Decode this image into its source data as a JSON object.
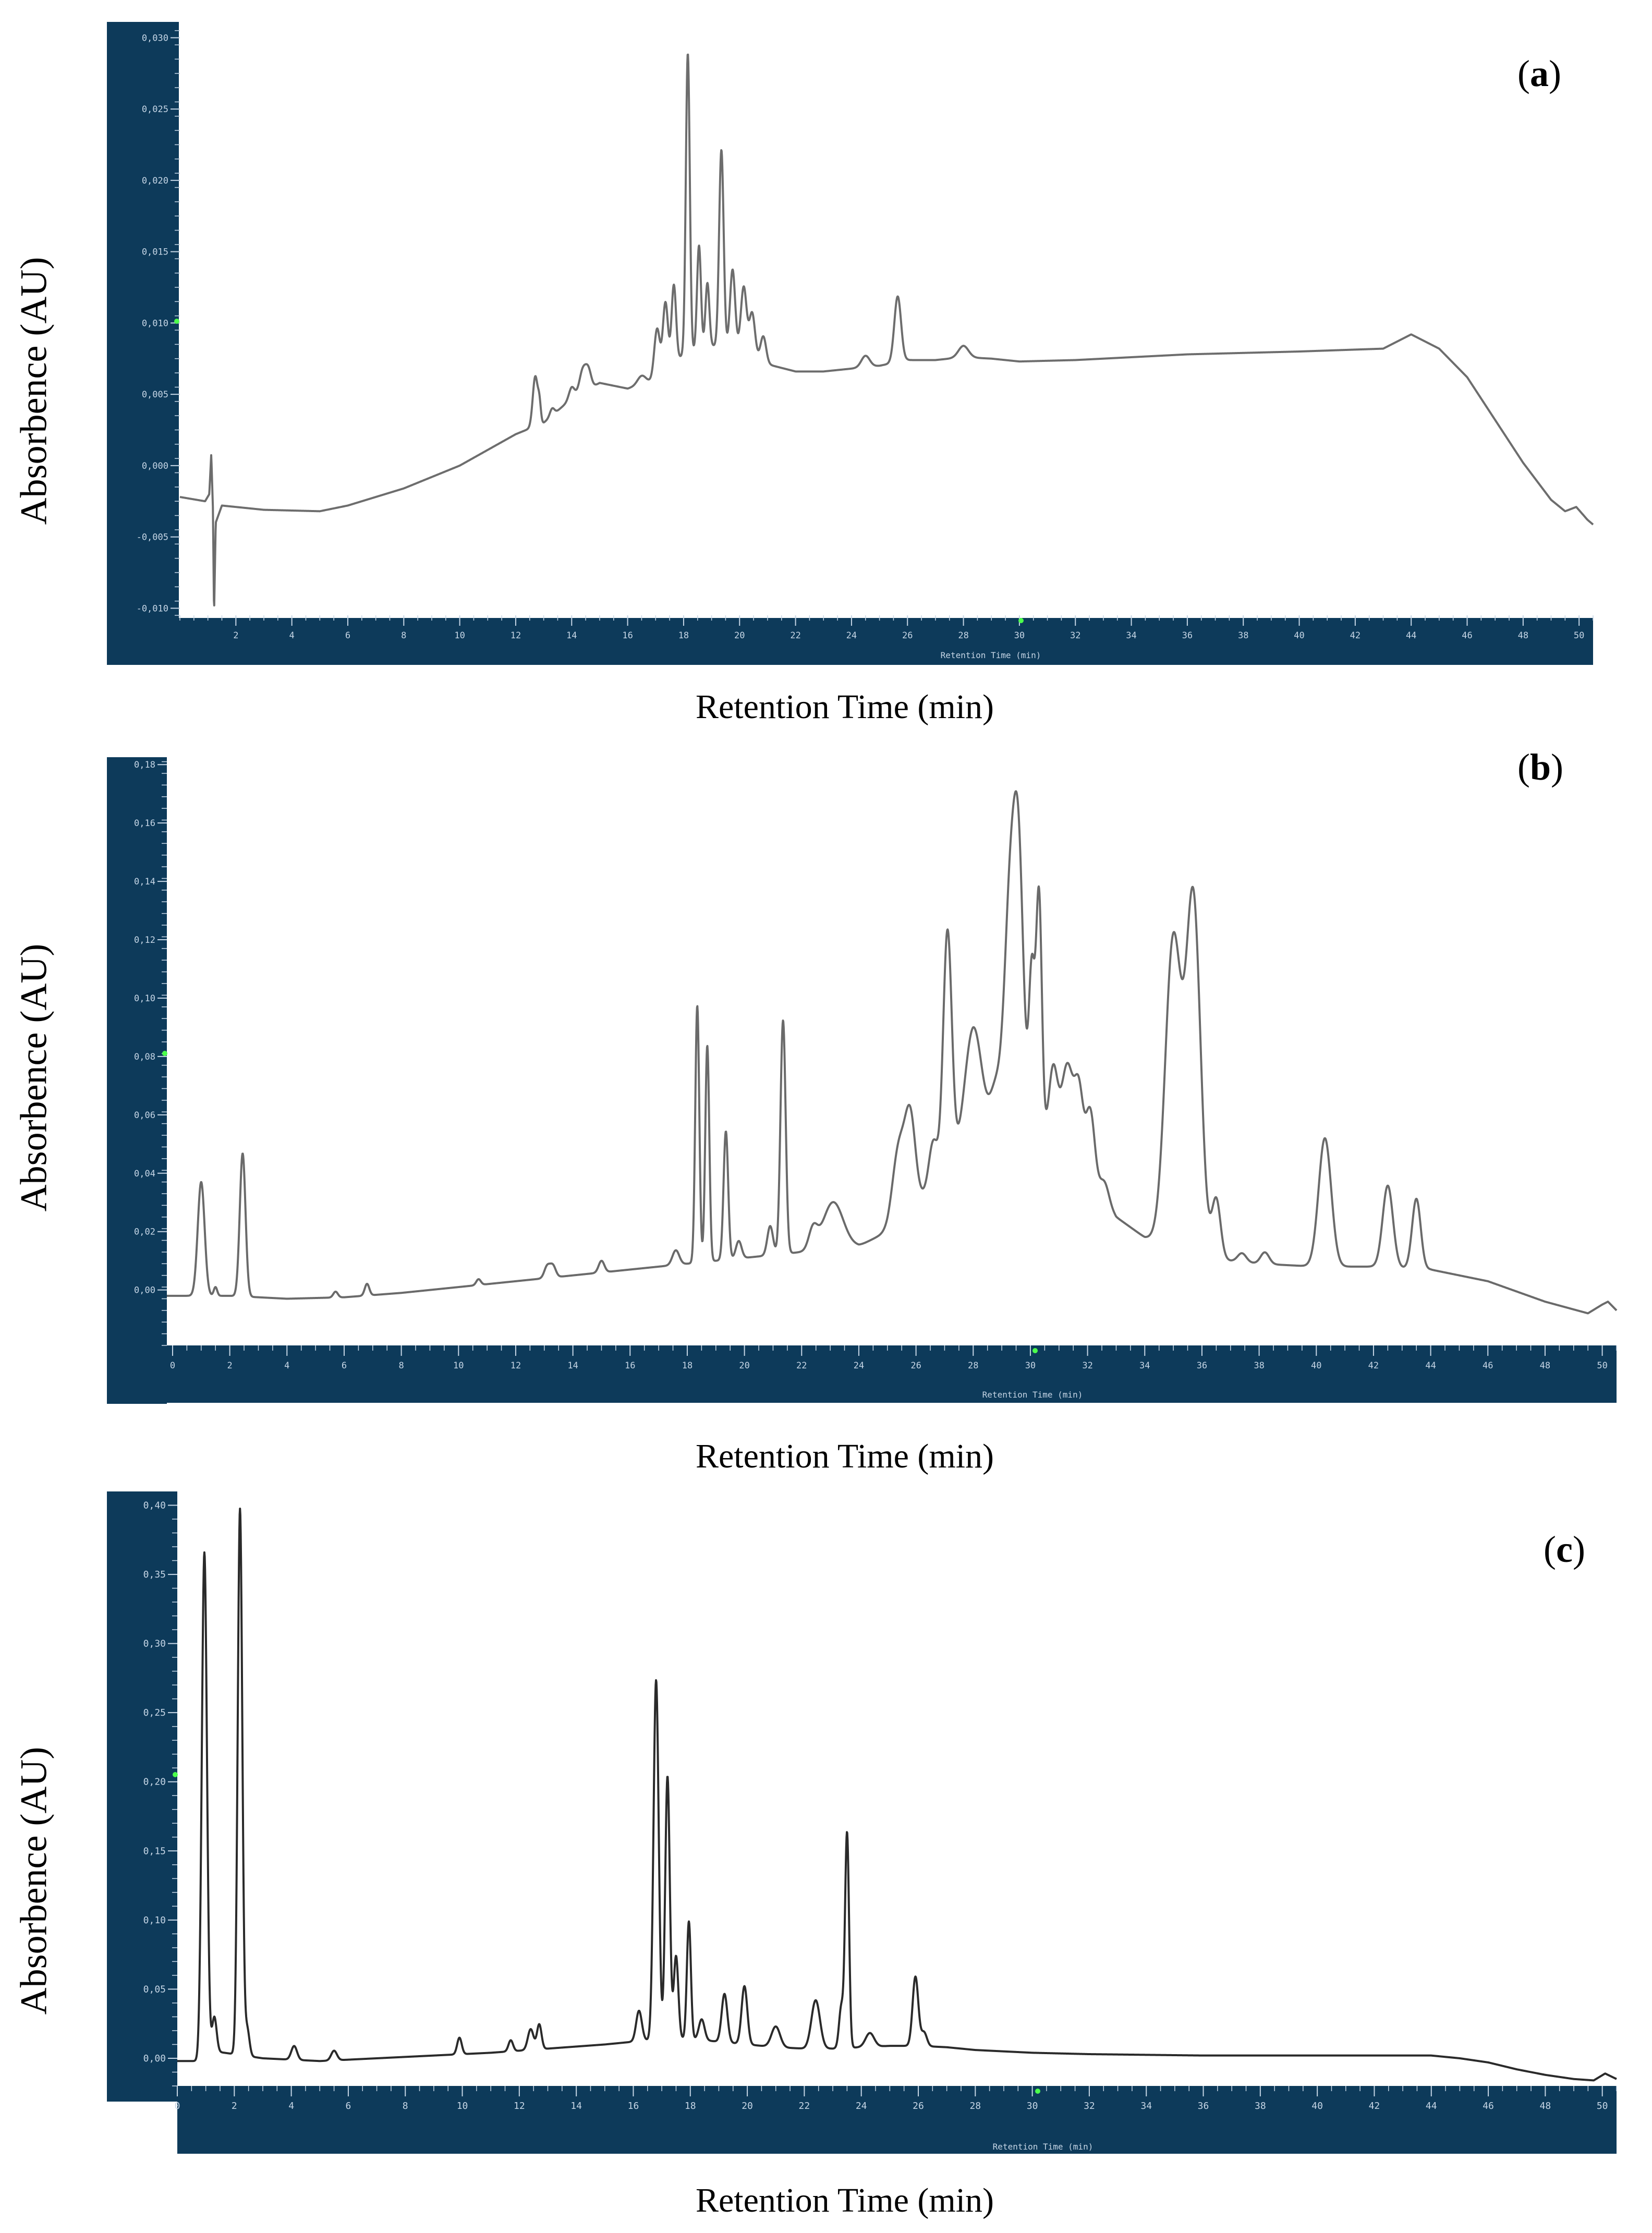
{
  "figure_panels": [
    {
      "id": "a",
      "label": "a"
    },
    {
      "id": "b",
      "label": "b"
    },
    {
      "id": "c",
      "label": "c"
    }
  ],
  "colors": {
    "axis_band": "#0d3a5a",
    "tick_text": "#c6d6e6",
    "trace_a": "#6d6d6d",
    "trace_b": "#6a6a6a",
    "trace_c": "#2a2a2a",
    "marker": "#4cff4c",
    "background": "#ffffff"
  },
  "chart_data": [
    {
      "type": "line",
      "panel": "a",
      "ylabel": "Absorbence (AU)",
      "xlabel": "Retention Time (min)",
      "inner_xlabel": "Retention Time (min)",
      "xlim": [
        0,
        50.5
      ],
      "ylim": [
        -0.0105,
        0.031
      ],
      "xticks": [
        2,
        4,
        6,
        8,
        10,
        12,
        14,
        16,
        18,
        20,
        22,
        24,
        26,
        28,
        30,
        32,
        34,
        36,
        38,
        40,
        42,
        44,
        46,
        48,
        50
      ],
      "yticks": [
        -0.01,
        -0.005,
        0.0,
        0.005,
        0.01,
        0.015,
        0.02,
        0.025,
        0.03
      ],
      "yticklabels": [
        "-0,010",
        "-0,005",
        "0,000",
        "0,005",
        "0,010",
        "0,015",
        "0,020",
        "0,025",
        "0,030"
      ],
      "baseline": [
        [
          0,
          -0.0022
        ],
        [
          0.9,
          -0.0025
        ],
        [
          1.05,
          -0.002
        ],
        [
          1.12,
          0.0008
        ],
        [
          1.18,
          -0.003
        ],
        [
          1.22,
          -0.0105
        ],
        [
          1.28,
          -0.004
        ],
        [
          1.5,
          -0.0028
        ],
        [
          3,
          -0.0031
        ],
        [
          5,
          -0.0032
        ],
        [
          6,
          -0.0028
        ],
        [
          8,
          -0.0016
        ],
        [
          10,
          0.0
        ],
        [
          12,
          0.0022
        ],
        [
          13,
          0.003
        ],
        [
          14,
          0.0047
        ],
        [
          15,
          0.0058
        ],
        [
          16,
          0.0054
        ],
        [
          17,
          0.006
        ],
        [
          18,
          0.0078
        ],
        [
          19,
          0.0084
        ],
        [
          20,
          0.0082
        ],
        [
          21,
          0.0071
        ],
        [
          22,
          0.0066
        ],
        [
          23,
          0.0066
        ],
        [
          24,
          0.0068
        ],
        [
          25,
          0.007
        ],
        [
          26,
          0.0074
        ],
        [
          27,
          0.0074
        ],
        [
          28,
          0.0076
        ],
        [
          29,
          0.0075
        ],
        [
          30,
          0.0073
        ],
        [
          32,
          0.0074
        ],
        [
          36,
          0.0078
        ],
        [
          40,
          0.008
        ],
        [
          43,
          0.0082
        ],
        [
          44,
          0.0092
        ],
        [
          45,
          0.0082
        ],
        [
          46,
          0.0062
        ],
        [
          47,
          0.0032
        ],
        [
          48,
          0.0002
        ],
        [
          49,
          -0.0024
        ],
        [
          49.5,
          -0.0032
        ],
        [
          49.9,
          -0.0029
        ],
        [
          50.3,
          -0.0038
        ],
        [
          50.6,
          -0.0043
        ]
      ],
      "peaks": [
        [
          12.7,
          0.0035,
          0.09
        ],
        [
          12.85,
          0.0012,
          0.05
        ],
        [
          13.3,
          0.0005,
          0.08
        ],
        [
          14.0,
          0.0008,
          0.1
        ],
        [
          14.4,
          0.0016,
          0.12
        ],
        [
          14.6,
          0.0012,
          0.1
        ],
        [
          16.5,
          0.0006,
          0.15
        ],
        [
          17.05,
          0.0035,
          0.1
        ],
        [
          17.35,
          0.0048,
          0.09
        ],
        [
          17.65,
          0.0055,
          0.08
        ],
        [
          18.15,
          0.021,
          0.07
        ],
        [
          18.55,
          0.0073,
          0.07
        ],
        [
          18.85,
          0.0045,
          0.07
        ],
        [
          19.35,
          0.0138,
          0.08
        ],
        [
          19.75,
          0.0055,
          0.09
        ],
        [
          20.15,
          0.0045,
          0.1
        ],
        [
          20.45,
          0.003,
          0.1
        ],
        [
          20.85,
          0.0018,
          0.1
        ],
        [
          24.5,
          0.0008,
          0.15
        ],
        [
          25.65,
          0.0046,
          0.12
        ],
        [
          28.0,
          0.0008,
          0.18
        ]
      ]
    },
    {
      "type": "line",
      "panel": "b",
      "ylabel": "Absorbence (AU)",
      "xlabel": "Retention Time (min)",
      "inner_xlabel": "Retention Time (min)",
      "xlim": [
        -0.2,
        50.5
      ],
      "ylim": [
        -0.019,
        0.182
      ],
      "xticks": [
        0,
        2,
        4,
        6,
        8,
        10,
        12,
        14,
        16,
        18,
        20,
        22,
        24,
        26,
        28,
        30,
        32,
        34,
        36,
        38,
        40,
        42,
        44,
        46,
        48,
        50
      ],
      "yticks": [
        0.0,
        0.02,
        0.04,
        0.06,
        0.08,
        0.1,
        0.12,
        0.14,
        0.16,
        0.18
      ],
      "yticklabels": [
        "0,00",
        "0,02",
        "0,04",
        "0,06",
        "0,08",
        "0,10",
        "0,12",
        "0,14",
        "0,16",
        "0,18"
      ],
      "baseline": [
        [
          -0.2,
          -0.002
        ],
        [
          2,
          -0.002
        ],
        [
          4,
          -0.003
        ],
        [
          6,
          -0.0025
        ],
        [
          8,
          -0.001
        ],
        [
          10,
          0.001
        ],
        [
          12,
          0.003
        ],
        [
          14,
          0.005
        ],
        [
          16,
          0.007
        ],
        [
          17,
          0.008
        ],
        [
          18,
          0.009
        ],
        [
          19,
          0.01
        ],
        [
          20,
          0.011
        ],
        [
          21,
          0.012
        ],
        [
          22,
          0.013
        ],
        [
          23,
          0.014
        ],
        [
          24,
          0.015
        ],
        [
          25,
          0.02
        ],
        [
          26,
          0.03
        ],
        [
          27,
          0.04
        ],
        [
          28,
          0.05
        ],
        [
          29,
          0.055
        ],
        [
          30,
          0.055
        ],
        [
          31,
          0.05
        ],
        [
          32,
          0.04
        ],
        [
          33,
          0.025
        ],
        [
          34,
          0.018
        ],
        [
          35,
          0.015
        ],
        [
          36,
          0.012
        ],
        [
          37,
          0.01
        ],
        [
          38,
          0.009
        ],
        [
          40,
          0.008
        ],
        [
          42,
          0.008
        ],
        [
          44,
          0.007
        ],
        [
          46,
          0.003
        ],
        [
          48,
          -0.004
        ],
        [
          49.5,
          -0.008
        ],
        [
          50,
          -0.005
        ],
        [
          50.2,
          -0.004
        ],
        [
          50.5,
          -0.007
        ]
      ],
      "peaks": [
        [
          1.0,
          0.039,
          0.12
        ],
        [
          1.5,
          0.003,
          0.06
        ],
        [
          2.45,
          0.049,
          0.1
        ],
        [
          5.7,
          0.002,
          0.08
        ],
        [
          6.8,
          0.004,
          0.08
        ],
        [
          10.7,
          0.002,
          0.08
        ],
        [
          13.1,
          0.004,
          0.1
        ],
        [
          13.3,
          0.004,
          0.1
        ],
        [
          15.0,
          0.004,
          0.1
        ],
        [
          17.6,
          0.005,
          0.12
        ],
        [
          18.35,
          0.088,
          0.07
        ],
        [
          18.7,
          0.074,
          0.07
        ],
        [
          19.35,
          0.044,
          0.08
        ],
        [
          19.8,
          0.006,
          0.1
        ],
        [
          20.9,
          0.01,
          0.1
        ],
        [
          21.35,
          0.08,
          0.09
        ],
        [
          22.4,
          0.007,
          0.15
        ],
        [
          23.1,
          0.016,
          0.35
        ],
        [
          25.4,
          0.025,
          0.22
        ],
        [
          25.8,
          0.03,
          0.18
        ],
        [
          26.6,
          0.015,
          0.15
        ],
        [
          27.1,
          0.082,
          0.15
        ],
        [
          28.0,
          0.04,
          0.3
        ],
        [
          28.8,
          0.015,
          0.2
        ],
        [
          29.3,
          0.08,
          0.2
        ],
        [
          29.6,
          0.08,
          0.17
        ],
        [
          30.05,
          0.054,
          0.1
        ],
        [
          30.3,
          0.082,
          0.1
        ],
        [
          30.8,
          0.025,
          0.15
        ],
        [
          31.3,
          0.03,
          0.2
        ],
        [
          31.7,
          0.025,
          0.15
        ],
        [
          32.1,
          0.023,
          0.15
        ],
        [
          32.6,
          0.006,
          0.15
        ],
        [
          35.0,
          0.105,
          0.28
        ],
        [
          35.7,
          0.12,
          0.25
        ],
        [
          36.5,
          0.02,
          0.15
        ],
        [
          37.4,
          0.003,
          0.15
        ],
        [
          38.2,
          0.004,
          0.15
        ],
        [
          40.3,
          0.044,
          0.22
        ],
        [
          42.5,
          0.028,
          0.18
        ],
        [
          43.5,
          0.024,
          0.15
        ]
      ]
    },
    {
      "type": "line",
      "panel": "c",
      "ylabel": "Absorbence (AU)",
      "xlabel": "Retention Time (min)",
      "inner_xlabel": "Retention Time (min)",
      "xlim": [
        0,
        50.5
      ],
      "ylim": [
        -0.02,
        0.41
      ],
      "xticks": [
        0,
        2,
        4,
        6,
        8,
        10,
        12,
        14,
        16,
        18,
        20,
        22,
        24,
        26,
        28,
        30,
        32,
        34,
        36,
        38,
        40,
        42,
        44,
        46,
        48,
        50
      ],
      "yticks": [
        0.0,
        0.05,
        0.1,
        0.15,
        0.2,
        0.25,
        0.3,
        0.35,
        0.4
      ],
      "yticklabels": [
        "0,00",
        "0,05",
        "0,10",
        "0,15",
        "0,20",
        "0,25",
        "0,30",
        "0,35",
        "0,40"
      ],
      "baseline": [
        [
          0,
          -0.002
        ],
        [
          0.7,
          -0.002
        ],
        [
          1.3,
          0.005
        ],
        [
          2.0,
          0.003
        ],
        [
          3,
          0.0
        ],
        [
          5,
          -0.002
        ],
        [
          7,
          0.0
        ],
        [
          9,
          0.002
        ],
        [
          11,
          0.004
        ],
        [
          13,
          0.007
        ],
        [
          15,
          0.01
        ],
        [
          16,
          0.012
        ],
        [
          17,
          0.014
        ],
        [
          18,
          0.014
        ],
        [
          19,
          0.012
        ],
        [
          20,
          0.01
        ],
        [
          21,
          0.008
        ],
        [
          22,
          0.007
        ],
        [
          23,
          0.007
        ],
        [
          24,
          0.008
        ],
        [
          25,
          0.009
        ],
        [
          26,
          0.009
        ],
        [
          27,
          0.008
        ],
        [
          28,
          0.006
        ],
        [
          29,
          0.005
        ],
        [
          30,
          0.004
        ],
        [
          32,
          0.003
        ],
        [
          36,
          0.002
        ],
        [
          40,
          0.002
        ],
        [
          44,
          0.002
        ],
        [
          45,
          0.0
        ],
        [
          46,
          -0.003
        ],
        [
          47,
          -0.008
        ],
        [
          48,
          -0.012
        ],
        [
          49,
          -0.015
        ],
        [
          49.7,
          -0.016
        ],
        [
          50.1,
          -0.011
        ],
        [
          50.5,
          -0.015
        ]
      ],
      "peaks": [
        [
          0.95,
          0.365,
          0.09
        ],
        [
          1.3,
          0.025,
          0.08
        ],
        [
          2.2,
          0.395,
          0.08
        ],
        [
          2.45,
          0.02,
          0.08
        ],
        [
          4.1,
          0.01,
          0.1
        ],
        [
          5.5,
          0.007,
          0.1
        ],
        [
          9.9,
          0.012,
          0.08
        ],
        [
          11.7,
          0.008,
          0.08
        ],
        [
          12.4,
          0.015,
          0.1
        ],
        [
          12.7,
          0.018,
          0.08
        ],
        [
          16.2,
          0.022,
          0.1
        ],
        [
          16.8,
          0.26,
          0.09
        ],
        [
          17.2,
          0.19,
          0.08
        ],
        [
          17.5,
          0.06,
          0.08
        ],
        [
          17.95,
          0.085,
          0.07
        ],
        [
          18.4,
          0.015,
          0.1
        ],
        [
          19.2,
          0.035,
          0.1
        ],
        [
          19.9,
          0.042,
          0.1
        ],
        [
          21.0,
          0.015,
          0.15
        ],
        [
          22.4,
          0.035,
          0.15
        ],
        [
          23.5,
          0.155,
          0.07
        ],
        [
          23.3,
          0.03,
          0.08
        ],
        [
          24.3,
          0.01,
          0.15
        ],
        [
          25.9,
          0.05,
          0.1
        ],
        [
          26.2,
          0.01,
          0.1
        ]
      ]
    }
  ]
}
